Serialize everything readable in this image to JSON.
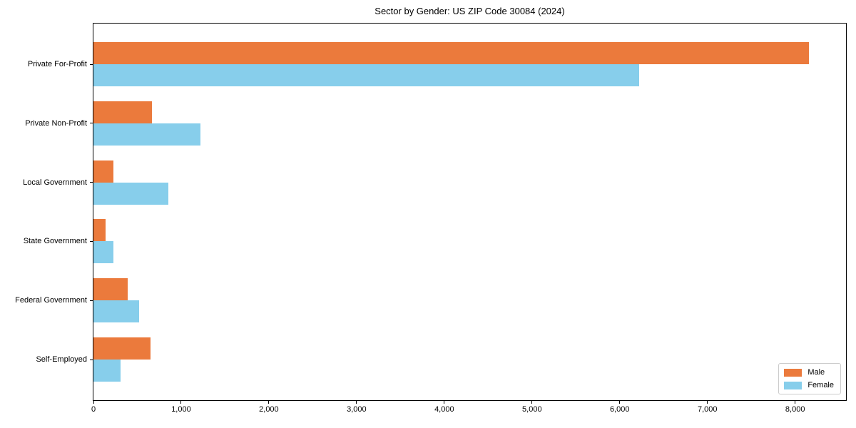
{
  "figure": {
    "title": "Sector by Gender: US ZIP Code 30084 (2024)"
  },
  "chart_data": {
    "type": "bar",
    "orientation": "horizontal",
    "title": "Sector by Gender: US ZIP Code 30084 (2024)",
    "xlabel": "",
    "ylabel": "",
    "categories": [
      "Private For-Profit",
      "Private Non-Profit",
      "Local Government",
      "State Government",
      "Federal Government",
      "Self-Employed"
    ],
    "series": [
      {
        "name": "Male",
        "color": "#eb7a3c",
        "values": [
          8155,
          665,
          230,
          135,
          390,
          650
        ]
      },
      {
        "name": "Female",
        "color": "#87ceeb",
        "values": [
          6220,
          1220,
          850,
          230,
          520,
          310
        ]
      }
    ],
    "xlim": [
      0,
      8580
    ],
    "xticks": {
      "values": [
        0,
        1000,
        2000,
        3000,
        4000,
        5000,
        6000,
        7000,
        8000
      ],
      "labels": [
        "0",
        "1,000",
        "2,000",
        "3,000",
        "4,000",
        "5,000",
        "6,000",
        "7,000",
        "8,000"
      ]
    },
    "grid": false,
    "legend": {
      "position": "lower right",
      "entries": [
        "Male",
        "Female"
      ]
    }
  }
}
